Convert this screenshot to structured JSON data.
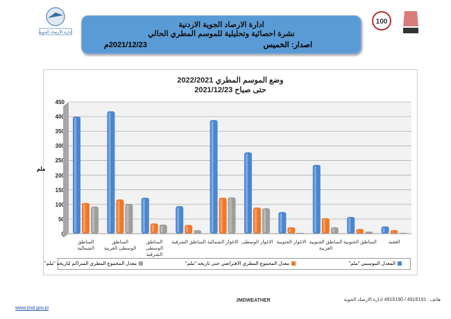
{
  "header": {
    "line1": "ادارة الارصاد الجوية الاردنية",
    "line2": "نشرة احصائية وتحليلية للموسم المطري الحالي",
    "issue": "اصدار: الخميس",
    "date": "2021/12/23م"
  },
  "logos": {
    "left_caption": "إدارة الأرصاد الجوية"
  },
  "footer": {
    "website": "www.jmd.gov.jo",
    "social": "JMDWEATHER",
    "contact": "هاتف : 4916191 / 4916190 ادارة الارصاد الجوية"
  },
  "colors": {
    "blue": "#4a86d0",
    "orange": "#f07828",
    "gray": "#9e9e9e",
    "header": "#5b9bd5"
  },
  "chart_data": {
    "type": "bar",
    "title": "وضع الموسم المطري 2022/2021",
    "subtitle": "حتى صباح 2021/12/23",
    "ylabel": "ملم",
    "xlabel": "",
    "ylim": [
      0,
      450
    ],
    "yticks": [
      "0",
      "50",
      "100",
      "150",
      "200",
      "250",
      "300",
      "350",
      "400",
      "450"
    ],
    "categories": [
      "المناطق الشمالية",
      "المناطق الوسطى الغربية",
      "المناطق الوسطى الشرقية",
      "المناطق الشرقية",
      "الاغوار الشمالية",
      "الاغوار الوسطى",
      "الاغوار الجنوبية",
      "المناطق الجنوبية الغربية",
      "المناطق الجنوبية",
      "العقبة"
    ],
    "series": [
      {
        "name": "المعدل الموسمي \"ملم\"",
        "color": "#4a86d0",
        "values": [
          400,
          418,
          123,
          94,
          388,
          278,
          74,
          235,
          57,
          25
        ]
      },
      {
        "name": "معدل المجموع المطري الافتراضي حتى تاريخه \"ملم\"",
        "color": "#f07828",
        "values": [
          105,
          117,
          35,
          30,
          123,
          89,
          22,
          53,
          16,
          12
        ]
      },
      {
        "name": "معدل المجموع المطري المتراكم لتاريخه \"ملم\"",
        "color": "#9e9e9e",
        "values": [
          93,
          102,
          31,
          12,
          124,
          87,
          3,
          22,
          7,
          3
        ]
      }
    ],
    "grid": true,
    "legend": "bottom"
  }
}
